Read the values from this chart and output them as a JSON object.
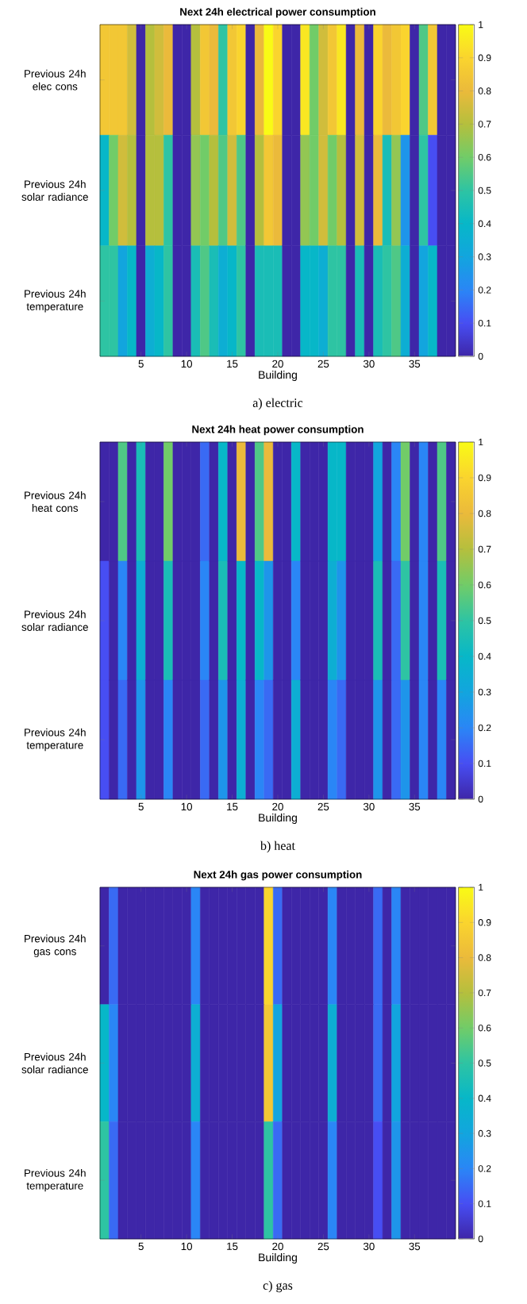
{
  "chart_data": [
    {
      "type": "heatmap",
      "title": "Next 24h electrical power consumption",
      "xlabel": "Building",
      "categories": [
        null,
        null,
        null,
        null,
        "5",
        null,
        null,
        null,
        null,
        "10",
        null,
        null,
        null,
        null,
        "15",
        null,
        null,
        null,
        null,
        "20",
        null,
        null,
        null,
        null,
        "25",
        null,
        null,
        null,
        null,
        "30",
        null,
        null,
        null,
        null,
        "35",
        null,
        null,
        null,
        null
      ],
      "y_categories": [
        "Previous 24h elec cons",
        "Previous 24h solar radiance",
        "Previous 24h temperature"
      ],
      "cells": [
        [
          0.85,
          0.85,
          0.85,
          0.75,
          0,
          0.7,
          0.75,
          0.8,
          0,
          0,
          0.7,
          0.85,
          0.8,
          0.5,
          0.85,
          0.9,
          0,
          0.8,
          1,
          0.9,
          0,
          0,
          0.95,
          0.6,
          0.75,
          0.85,
          0.95,
          0,
          0.8,
          0,
          0.9,
          0.8,
          0.85,
          0.9,
          0,
          0.55,
          0.85,
          0,
          0
        ],
        [
          0.4,
          0.6,
          0.75,
          0.7,
          0,
          0.7,
          0.7,
          0.5,
          0,
          0,
          0.65,
          0.6,
          0.7,
          0.55,
          0.75,
          0.55,
          0,
          0.7,
          0.85,
          0.8,
          0,
          0,
          0.65,
          0.6,
          0.75,
          0.6,
          0.7,
          0,
          0.75,
          0,
          0.8,
          0.45,
          0.65,
          0.25,
          0,
          0.5,
          0.1,
          0,
          0
        ],
        [
          0.5,
          0.5,
          0.3,
          0.4,
          0,
          0.35,
          0.4,
          0.5,
          0,
          0,
          0.45,
          0.55,
          0.45,
          0.35,
          0.4,
          0.5,
          0,
          0.45,
          0.45,
          0.45,
          0,
          0,
          0.4,
          0.4,
          0.35,
          0.5,
          0.5,
          0,
          0.45,
          0,
          0.45,
          0.5,
          0.55,
          0.35,
          0,
          0.3,
          0.4,
          0,
          0
        ]
      ],
      "clim": [
        0,
        1
      ],
      "cticks": [
        0,
        0.1,
        0.2,
        0.3,
        0.4,
        0.5,
        0.6,
        0.7,
        0.8,
        0.9,
        1
      ],
      "annotations": [
        "a) electric"
      ]
    },
    {
      "type": "heatmap",
      "title": "Next 24h heat power consumption",
      "xlabel": "Building",
      "categories": [
        null,
        null,
        null,
        null,
        "5",
        null,
        null,
        null,
        null,
        "10",
        null,
        null,
        null,
        null,
        "15",
        null,
        null,
        null,
        null,
        "20",
        null,
        null,
        null,
        null,
        "25",
        null,
        null,
        null,
        null,
        "30",
        null,
        null,
        null,
        null,
        "35",
        null,
        null,
        null,
        null
      ],
      "y_categories": [
        "Previous 24h heat cons",
        "Previous 24h solar radiance",
        "Previous 24h temperature"
      ],
      "cells": [
        [
          0,
          0,
          0.55,
          0,
          0.45,
          0,
          0,
          0.6,
          0,
          0,
          0,
          0.15,
          0,
          0.4,
          0,
          0.8,
          0,
          0.55,
          0.8,
          0,
          0,
          0.4,
          0,
          0,
          0,
          0.4,
          0.4,
          0,
          0,
          0,
          0.3,
          0,
          0.2,
          0.6,
          0,
          0.2,
          0,
          0.55,
          0
        ],
        [
          0.1,
          0,
          0.2,
          0,
          0.35,
          0,
          0,
          0.45,
          0,
          0,
          0,
          0.2,
          0,
          0.45,
          0,
          0.4,
          0,
          0.4,
          0.25,
          0,
          0,
          0.2,
          0,
          0,
          0,
          0.35,
          0.25,
          0,
          0,
          0,
          0.45,
          0,
          0.15,
          0.5,
          0,
          0.2,
          0,
          0.45,
          0
        ],
        [
          0.1,
          0,
          0.15,
          0,
          0.25,
          0,
          0,
          0.2,
          0,
          0,
          0,
          0.15,
          0,
          0.25,
          0,
          0.35,
          0,
          0.2,
          0.15,
          0,
          0,
          0.35,
          0,
          0,
          0,
          0.2,
          0.15,
          0,
          0,
          0,
          0.25,
          0,
          0.15,
          0.25,
          0,
          0.2,
          0,
          0.2,
          0
        ]
      ],
      "clim": [
        0,
        1
      ],
      "cticks": [
        0,
        0.1,
        0.2,
        0.3,
        0.4,
        0.5,
        0.6,
        0.7,
        0.8,
        0.9,
        1
      ],
      "annotations": [
        "b) heat"
      ]
    },
    {
      "type": "heatmap",
      "title": "Next 24h gas power consumption",
      "xlabel": "Building",
      "categories": [
        null,
        null,
        null,
        null,
        "5",
        null,
        null,
        null,
        null,
        "10",
        null,
        null,
        null,
        null,
        "15",
        null,
        null,
        null,
        null,
        "20",
        null,
        null,
        null,
        null,
        "25",
        null,
        null,
        null,
        null,
        "30",
        null,
        null,
        null,
        null,
        "35",
        null,
        null,
        null,
        null
      ],
      "y_categories": [
        "Previous 24h gas cons",
        "Previous 24h solar radiance",
        "Previous 24h temperature"
      ],
      "cells": [
        [
          0,
          0.15,
          0,
          0,
          0,
          0,
          0,
          0,
          0,
          0,
          0.2,
          0,
          0,
          0,
          0,
          0,
          0,
          0,
          0.9,
          0.15,
          0,
          0,
          0,
          0,
          0,
          0.2,
          0,
          0,
          0,
          0,
          0.15,
          0,
          0.2,
          0,
          0,
          0,
          0,
          0,
          0
        ],
        [
          0.4,
          0.2,
          0,
          0,
          0,
          0,
          0,
          0,
          0,
          0,
          0.35,
          0,
          0,
          0,
          0,
          0,
          0,
          0,
          0.85,
          0.3,
          0,
          0,
          0,
          0,
          0,
          0.35,
          0,
          0,
          0,
          0,
          0.15,
          0,
          0.3,
          0,
          0,
          0,
          0,
          0,
          0
        ],
        [
          0.5,
          0.15,
          0,
          0,
          0,
          0,
          0,
          0,
          0,
          0,
          0.2,
          0,
          0,
          0,
          0,
          0,
          0,
          0,
          0.5,
          0.15,
          0,
          0,
          0,
          0,
          0,
          0.2,
          0,
          0,
          0,
          0,
          0.1,
          0,
          0.25,
          0,
          0,
          0,
          0,
          0,
          0
        ]
      ],
      "clim": [
        0,
        1
      ],
      "cticks": [
        0,
        0.1,
        0.2,
        0.3,
        0.4,
        0.5,
        0.6,
        0.7,
        0.8,
        0.9,
        1
      ],
      "annotations": [
        "c) gas"
      ]
    }
  ]
}
